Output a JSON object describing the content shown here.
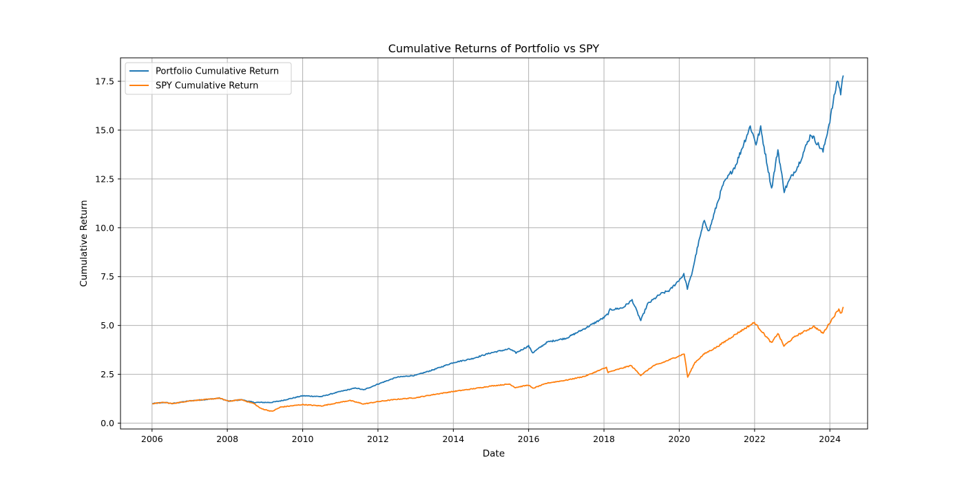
{
  "chart_data": {
    "type": "line",
    "title": "Cumulative Returns of Portfolio vs SPY",
    "xlabel": "Date",
    "ylabel": "Cumulative Return",
    "xlim": [
      "2005-03-01",
      "2025-01-01"
    ],
    "ylim": [
      -0.3,
      18.7
    ],
    "x_ticks": [
      "2006",
      "2008",
      "2010",
      "2012",
      "2014",
      "2016",
      "2018",
      "2020",
      "2022",
      "2024"
    ],
    "y_ticks": [
      "0.0",
      "2.5",
      "5.0",
      "7.5",
      "10.0",
      "12.5",
      "15.0",
      "17.5"
    ],
    "grid": true,
    "legend_position": "top-left",
    "series": [
      {
        "name": "Portfolio Cumulative Return",
        "color": "#1f77b4",
        "points": [
          [
            "2006-01-03",
            1.0
          ],
          [
            "2006-05-01",
            1.06
          ],
          [
            "2006-07-15",
            1.0
          ],
          [
            "2007-01-01",
            1.14
          ],
          [
            "2007-07-01",
            1.22
          ],
          [
            "2007-10-15",
            1.28
          ],
          [
            "2008-01-15",
            1.12
          ],
          [
            "2008-05-15",
            1.2
          ],
          [
            "2008-09-15",
            1.06
          ],
          [
            "2009-03-01",
            1.06
          ],
          [
            "2009-06-01",
            1.14
          ],
          [
            "2010-01-01",
            1.4
          ],
          [
            "2010-07-01",
            1.36
          ],
          [
            "2011-01-01",
            1.62
          ],
          [
            "2011-06-01",
            1.8
          ],
          [
            "2011-08-15",
            1.7
          ],
          [
            "2012-01-01",
            2.0
          ],
          [
            "2012-07-01",
            2.35
          ],
          [
            "2013-01-01",
            2.45
          ],
          [
            "2013-07-01",
            2.75
          ],
          [
            "2014-01-01",
            3.1
          ],
          [
            "2014-07-01",
            3.3
          ],
          [
            "2015-01-01",
            3.6
          ],
          [
            "2015-07-01",
            3.8
          ],
          [
            "2015-09-01",
            3.6
          ],
          [
            "2016-01-01",
            3.95
          ],
          [
            "2016-02-10",
            3.6
          ],
          [
            "2016-07-01",
            4.15
          ],
          [
            "2017-01-01",
            4.35
          ],
          [
            "2017-07-01",
            4.85
          ],
          [
            "2018-01-01",
            5.4
          ],
          [
            "2018-02-10",
            5.6
          ],
          [
            "2018-03-01",
            5.8
          ],
          [
            "2018-07-01",
            5.9
          ],
          [
            "2018-10-01",
            6.3
          ],
          [
            "2018-12-24",
            5.25
          ],
          [
            "2019-03-01",
            6.1
          ],
          [
            "2019-07-01",
            6.6
          ],
          [
            "2019-10-01",
            6.8
          ],
          [
            "2020-02-15",
            7.6
          ],
          [
            "2020-03-20",
            6.9
          ],
          [
            "2020-04-30",
            7.6
          ],
          [
            "2020-07-01",
            9.1
          ],
          [
            "2020-09-01",
            10.4
          ],
          [
            "2020-10-15",
            9.8
          ],
          [
            "2021-01-01",
            11.2
          ],
          [
            "2021-03-01",
            12.2
          ],
          [
            "2021-07-01",
            13.2
          ],
          [
            "2021-11-20",
            15.2
          ],
          [
            "2022-01-15",
            14.3
          ],
          [
            "2022-03-01",
            15.1
          ],
          [
            "2022-06-15",
            12.0
          ],
          [
            "2022-08-15",
            14.0
          ],
          [
            "2022-10-15",
            11.9
          ],
          [
            "2023-01-01",
            12.7
          ],
          [
            "2023-03-01",
            13.2
          ],
          [
            "2023-07-01",
            14.8
          ],
          [
            "2023-10-27",
            13.9
          ],
          [
            "2024-01-01",
            15.5
          ],
          [
            "2024-03-15",
            17.6
          ],
          [
            "2024-04-15",
            16.9
          ],
          [
            "2024-05-10",
            17.8
          ]
        ]
      },
      {
        "name": "SPY Cumulative Return",
        "color": "#ff7f0e",
        "points": [
          [
            "2006-01-03",
            1.0
          ],
          [
            "2006-05-01",
            1.06
          ],
          [
            "2006-07-15",
            1.0
          ],
          [
            "2007-01-01",
            1.14
          ],
          [
            "2007-07-01",
            1.22
          ],
          [
            "2007-10-15",
            1.28
          ],
          [
            "2008-01-15",
            1.12
          ],
          [
            "2008-05-15",
            1.2
          ],
          [
            "2008-09-15",
            1.0
          ],
          [
            "2008-11-20",
            0.75
          ],
          [
            "2009-03-09",
            0.6
          ],
          [
            "2009-06-01",
            0.82
          ],
          [
            "2010-01-01",
            0.95
          ],
          [
            "2010-07-01",
            0.88
          ],
          [
            "2011-04-01",
            1.16
          ],
          [
            "2011-08-15",
            0.98
          ],
          [
            "2012-01-01",
            1.1
          ],
          [
            "2012-07-01",
            1.22
          ],
          [
            "2013-01-01",
            1.3
          ],
          [
            "2013-07-01",
            1.47
          ],
          [
            "2014-01-01",
            1.62
          ],
          [
            "2014-07-01",
            1.75
          ],
          [
            "2015-01-01",
            1.9
          ],
          [
            "2015-07-01",
            2.0
          ],
          [
            "2015-08-25",
            1.82
          ],
          [
            "2016-01-01",
            1.95
          ],
          [
            "2016-02-10",
            1.78
          ],
          [
            "2016-07-01",
            2.05
          ],
          [
            "2017-01-01",
            2.2
          ],
          [
            "2017-07-01",
            2.4
          ],
          [
            "2018-01-25",
            2.85
          ],
          [
            "2018-02-10",
            2.6
          ],
          [
            "2018-09-20",
            2.95
          ],
          [
            "2018-12-24",
            2.45
          ],
          [
            "2019-04-30",
            2.95
          ],
          [
            "2019-07-01",
            3.05
          ],
          [
            "2020-02-19",
            3.55
          ],
          [
            "2020-03-23",
            2.35
          ],
          [
            "2020-06-01",
            3.1
          ],
          [
            "2020-09-01",
            3.55
          ],
          [
            "2021-01-01",
            3.9
          ],
          [
            "2021-07-01",
            4.55
          ],
          [
            "2021-12-30",
            5.15
          ],
          [
            "2022-06-15",
            4.1
          ],
          [
            "2022-08-15",
            4.6
          ],
          [
            "2022-10-12",
            3.95
          ],
          [
            "2023-02-01",
            4.45
          ],
          [
            "2023-07-31",
            4.95
          ],
          [
            "2023-10-27",
            4.6
          ],
          [
            "2024-01-01",
            5.15
          ],
          [
            "2024-03-28",
            5.85
          ],
          [
            "2024-04-19",
            5.6
          ],
          [
            "2024-05-10",
            5.95
          ]
        ]
      }
    ]
  }
}
